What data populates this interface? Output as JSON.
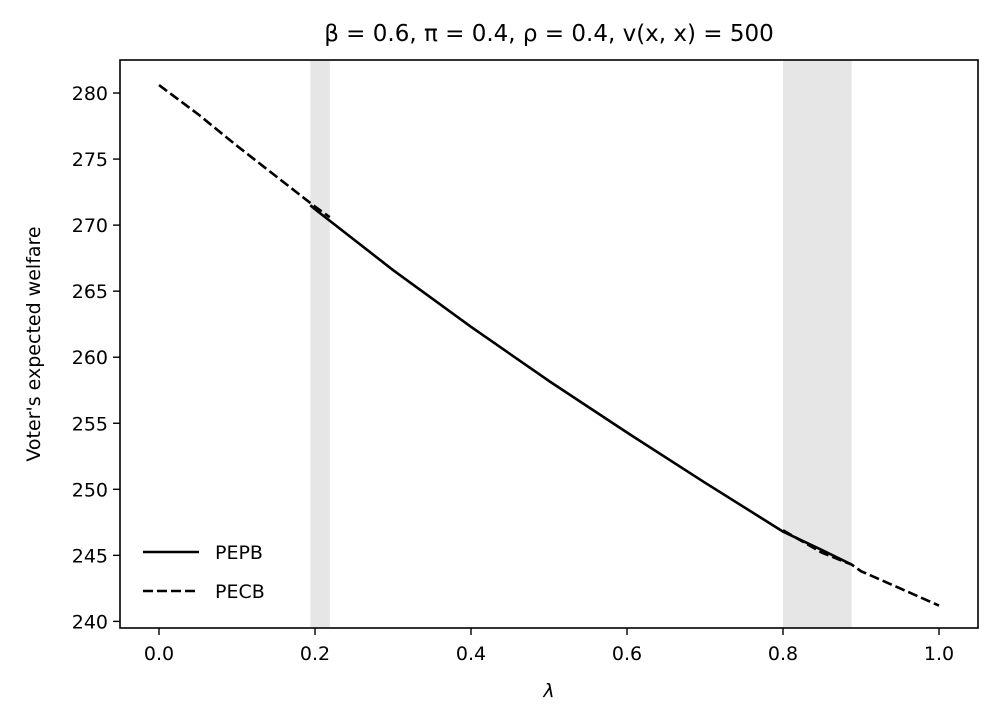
{
  "chart_data": {
    "type": "line",
    "title": "β = 0.6, π = 0.4, ρ = 0.4, v(x, x) = 500",
    "xlabel": "λ",
    "ylabel": "Voter's expected welfare",
    "xlim": [
      -0.05,
      1.05
    ],
    "ylim": [
      239.5,
      282.5
    ],
    "xticks": [
      0.0,
      0.2,
      0.4,
      0.6,
      0.8,
      1.0
    ],
    "xtick_labels": [
      "0.0",
      "0.2",
      "0.4",
      "0.6",
      "0.8",
      "1.0"
    ],
    "yticks": [
      240,
      245,
      250,
      255,
      260,
      265,
      270,
      275,
      280
    ],
    "ytick_labels": [
      "240",
      "245",
      "250",
      "255",
      "260",
      "265",
      "270",
      "275",
      "280"
    ],
    "grid": false,
    "legend_position": "lower-left",
    "shaded_regions": [
      {
        "x": [
          0.194,
          0.219
        ],
        "color": "#e6e6e6"
      },
      {
        "x": [
          0.8,
          0.888
        ],
        "color": "#e6e6e6"
      }
    ],
    "series": [
      {
        "name": "PEPB",
        "style": "solid",
        "color": "#000000",
        "x": [
          0.194,
          0.2,
          0.3,
          0.4,
          0.5,
          0.6,
          0.7,
          0.8,
          0.85,
          0.888
        ],
        "y": [
          271.5,
          271.2,
          266.6,
          262.3,
          258.2,
          254.3,
          250.5,
          246.8,
          245.4,
          244.3
        ]
      },
      {
        "name": "PECB",
        "style": "dashed",
        "color": "#000000",
        "x": [
          0.0,
          0.05,
          0.1,
          0.15,
          0.2,
          0.219
        ],
        "y": [
          280.6,
          278.4,
          276.0,
          273.7,
          271.4,
          270.6
        ]
      },
      {
        "name": "PECB",
        "style": "dashed",
        "color": "#000000",
        "x": [
          0.8,
          0.85,
          0.888,
          0.9,
          0.95,
          1.0
        ],
        "y": [
          246.9,
          245.2,
          244.3,
          243.8,
          242.5,
          241.2
        ]
      }
    ],
    "legend": [
      {
        "label": "PEPB",
        "style": "solid"
      },
      {
        "label": "PECB",
        "style": "dashed"
      }
    ]
  }
}
